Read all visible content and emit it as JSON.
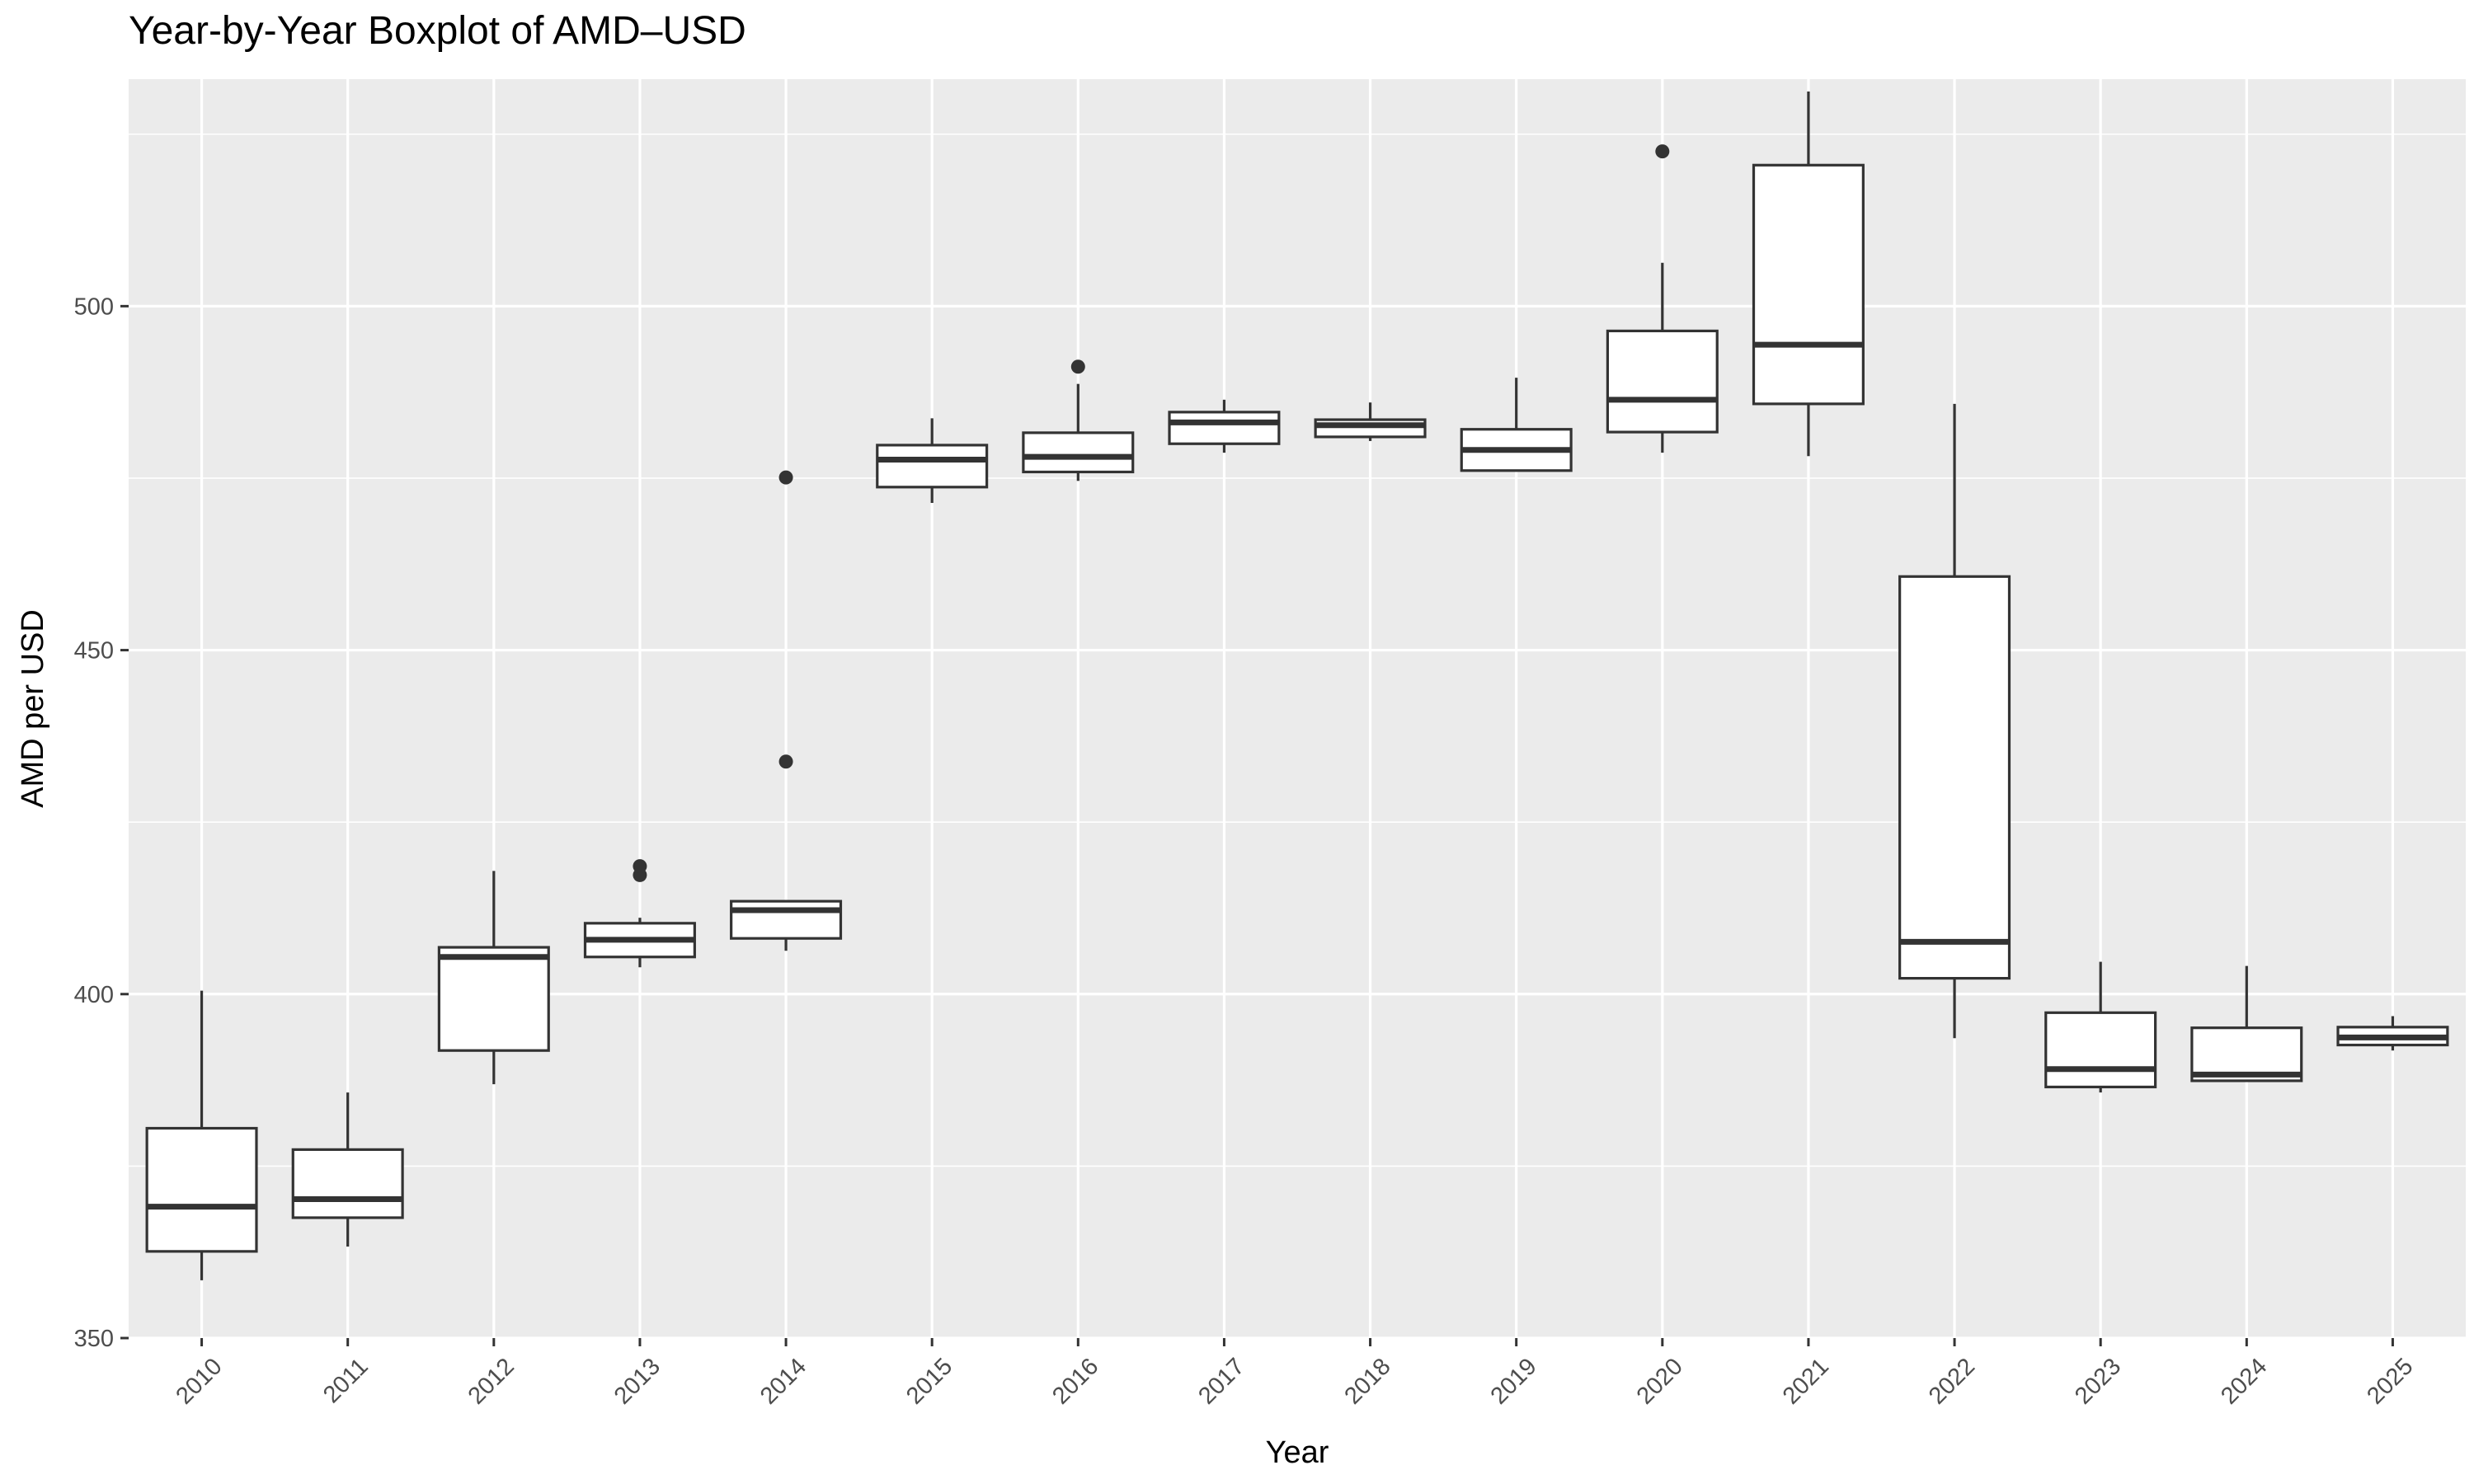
{
  "chart_data": {
    "type": "boxplot",
    "title": "Year-by-Year Boxplot of AMD–USD",
    "xlabel": "Year",
    "ylabel": "AMD per USD",
    "ylim": [
      350,
      533
    ],
    "y_ticks": [
      350,
      400,
      450,
      500
    ],
    "grid": true,
    "legend": "none",
    "categories": [
      "2010",
      "2011",
      "2012",
      "2013",
      "2014",
      "2015",
      "2016",
      "2017",
      "2018",
      "2019",
      "2020",
      "2021",
      "2022",
      "2023",
      "2024",
      "2025"
    ],
    "boxes": [
      {
        "year": "2010",
        "lower_whisker": 358.4,
        "q1": 362.6,
        "median": 369.1,
        "q3": 380.5,
        "upper_whisker": 400.5,
        "outliers": []
      },
      {
        "year": "2011",
        "lower_whisker": 363.3,
        "q1": 367.5,
        "median": 370.2,
        "q3": 377.4,
        "upper_whisker": 385.7,
        "outliers": []
      },
      {
        "year": "2012",
        "lower_whisker": 386.9,
        "q1": 391.8,
        "median": 405.4,
        "q3": 406.8,
        "upper_whisker": 417.9,
        "outliers": []
      },
      {
        "year": "2013",
        "lower_whisker": 403.9,
        "q1": 405.4,
        "median": 407.9,
        "q3": 410.3,
        "upper_whisker": 411.1,
        "outliers": [
          417.3,
          418.6
        ]
      },
      {
        "year": "2014",
        "lower_whisker": 406.3,
        "q1": 408.1,
        "median": 412.2,
        "q3": 413.5,
        "upper_whisker": 413.5,
        "outliers": [
          433.8,
          475.1
        ]
      },
      {
        "year": "2015",
        "lower_whisker": 471.4,
        "q1": 473.7,
        "median": 477.7,
        "q3": 479.8,
        "upper_whisker": 483.7,
        "outliers": []
      },
      {
        "year": "2016",
        "lower_whisker": 474.6,
        "q1": 475.9,
        "median": 478.1,
        "q3": 481.6,
        "upper_whisker": 488.7,
        "outliers": [
          491.2
        ]
      },
      {
        "year": "2017",
        "lower_whisker": 478.7,
        "q1": 480.0,
        "median": 483.1,
        "q3": 484.6,
        "upper_whisker": 486.4,
        "outliers": []
      },
      {
        "year": "2018",
        "lower_whisker": 480.4,
        "q1": 481.0,
        "median": 482.7,
        "q3": 483.5,
        "upper_whisker": 486.0,
        "outliers": []
      },
      {
        "year": "2019",
        "lower_whisker": 476.1,
        "q1": 476.1,
        "median": 479.1,
        "q3": 482.1,
        "upper_whisker": 489.6,
        "outliers": []
      },
      {
        "year": "2020",
        "lower_whisker": 478.7,
        "q1": 481.7,
        "median": 486.4,
        "q3": 496.4,
        "upper_whisker": 506.3,
        "outliers": [
          522.5
        ]
      },
      {
        "year": "2021",
        "lower_whisker": 478.2,
        "q1": 485.8,
        "median": 494.4,
        "q3": 520.5,
        "upper_whisker": 531.2,
        "outliers": []
      },
      {
        "year": "2022",
        "lower_whisker": 393.6,
        "q1": 402.3,
        "median": 407.6,
        "q3": 460.7,
        "upper_whisker": 485.8,
        "outliers": []
      },
      {
        "year": "2023",
        "lower_whisker": 385.7,
        "q1": 386.5,
        "median": 389.1,
        "q3": 397.3,
        "upper_whisker": 404.7,
        "outliers": []
      },
      {
        "year": "2024",
        "lower_whisker": 387.4,
        "q1": 387.4,
        "median": 388.3,
        "q3": 395.1,
        "upper_whisker": 404.1,
        "outliers": []
      },
      {
        "year": "2025",
        "lower_whisker": 391.8,
        "q1": 392.6,
        "median": 393.7,
        "q3": 395.2,
        "upper_whisker": 396.8,
        "outliers": []
      }
    ],
    "colors": {
      "panel_background": "#EBEBEB",
      "grid_major": "#FFFFFF",
      "box_fill": "#FFFFFF",
      "box_stroke": "#333333",
      "tick_label": "#4D4D4D",
      "text": "#000000"
    }
  }
}
